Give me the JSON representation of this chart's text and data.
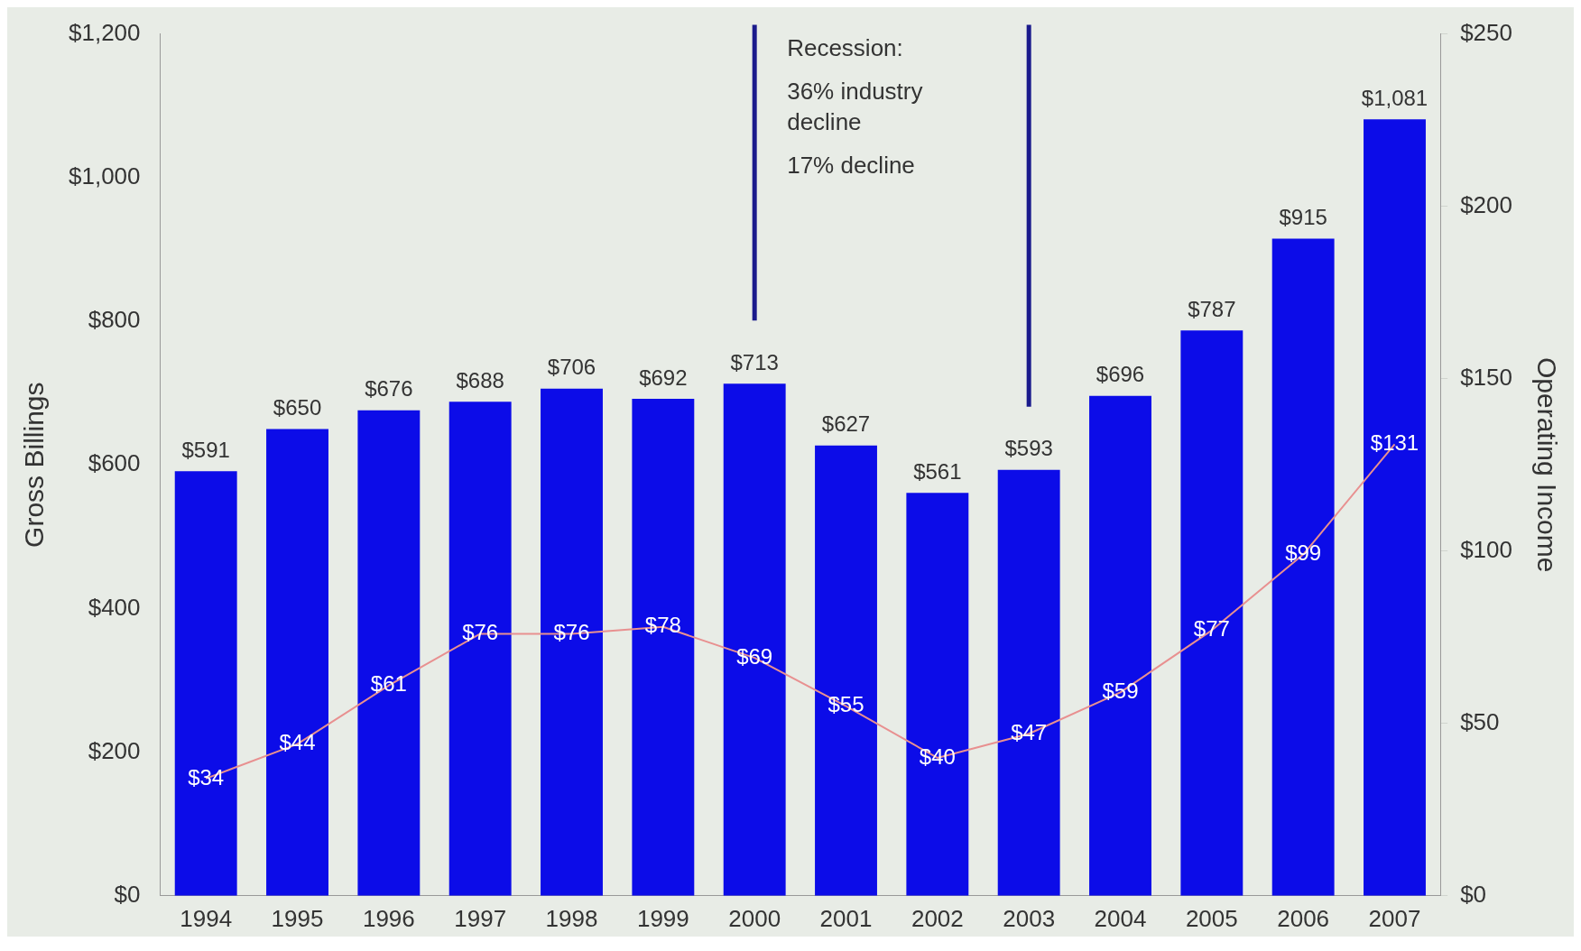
{
  "chart_data": {
    "type": "bar",
    "categories": [
      "1994",
      "1995",
      "1996",
      "1997",
      "1998",
      "1999",
      "2000",
      "2001",
      "2002",
      "2003",
      "2004",
      "2005",
      "2006",
      "2007"
    ],
    "series": [
      {
        "color": "#0c0ce8",
        "values": [
          591,
          650,
          676,
          688,
          706,
          692,
          713,
          627,
          561,
          593,
          696,
          787,
          915,
          1081
        ],
        "value_labels": [
          "$591",
          "$650",
          "$676",
          "$688",
          "$706",
          "$692",
          "$713",
          "$627",
          "$561",
          "$593",
          "$696",
          "$787",
          "$915",
          "$1,081"
        ]
      },
      {
        "type": "line",
        "axis": "y2",
        "color": "#e89090",
        "values": [
          34,
          44,
          61,
          76,
          76,
          78,
          69,
          55,
          40,
          47,
          59,
          77,
          99,
          131
        ],
        "value_labels": [
          "$34",
          "$44",
          "$61",
          "$76",
          "$76",
          "$78",
          "$69",
          "$55",
          "$40",
          "$47",
          "$59",
          "$77",
          "$99",
          "$131"
        ]
      }
    ],
    "ylabel": "Gross Billings",
    "y2label": "Operating Income",
    "ylim": [
      0,
      1200
    ],
    "yticks": [
      {
        "value": 0,
        "label": "$0"
      },
      {
        "value": 200,
        "label": "$200"
      },
      {
        "value": 400,
        "label": "$400"
      },
      {
        "value": 600,
        "label": "$600"
      },
      {
        "value": 800,
        "label": "$800"
      },
      {
        "value": 1000,
        "label": "$1,000"
      },
      {
        "value": 1200,
        "label": "$1,200"
      }
    ],
    "y2lim": [
      0,
      250
    ],
    "y2ticks": [
      {
        "value": 0,
        "label": "$0"
      },
      {
        "value": 50,
        "label": "$50"
      },
      {
        "value": 100,
        "label": "$100"
      },
      {
        "value": 150,
        "label": "$150"
      },
      {
        "value": 200,
        "label": "$200"
      },
      {
        "value": 250,
        "label": "$250"
      }
    ],
    "ref_lines": [
      {
        "axis": "x",
        "value": "2000",
        "color": "#1a1a8c"
      },
      {
        "axis": "x",
        "value": "2003",
        "color": "#1a1a8c"
      }
    ],
    "annotations": [
      "Recession:",
      "36% industry decline",
      "17% decline"
    ],
    "grid": false,
    "legend": false,
    "line_style": "solid"
  }
}
